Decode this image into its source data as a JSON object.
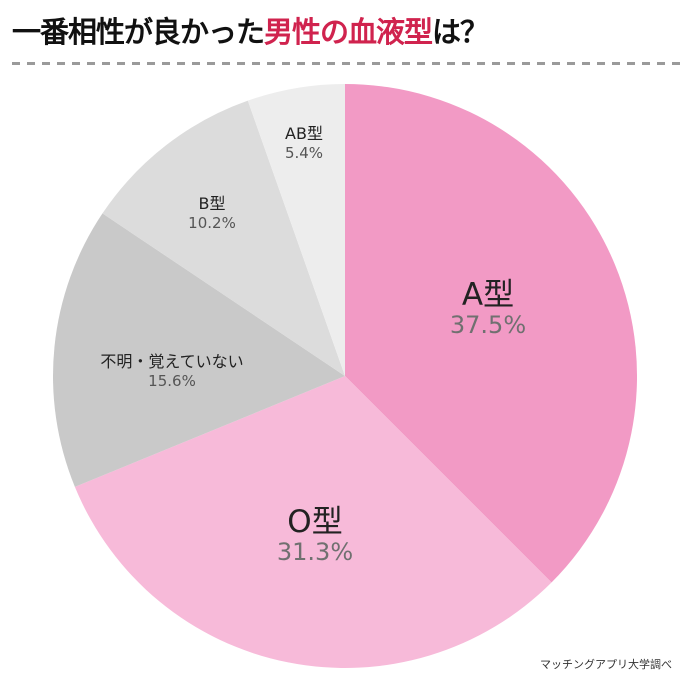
{
  "title": {
    "prefix": "一番相性が良かった",
    "highlight": "男性の血液型",
    "suffix": "は？",
    "highlight_color": "#D0234E"
  },
  "source": "マッチングアプリ大学調べ",
  "chart_data": {
    "type": "pie",
    "title": "一番相性が良かった男性の血液型は？",
    "start_angle": "12 o'clock, clockwise",
    "categories": [
      "A型",
      "O型",
      "不明・覚えていない",
      "B型",
      "AB型"
    ],
    "values": [
      37.5,
      31.3,
      15.6,
      10.2,
      5.4
    ],
    "unit": "%",
    "colors": [
      "#F29AC5",
      "#F7BAD9",
      "#C9C9C9",
      "#DCDCDC",
      "#EDEDED"
    ],
    "labels": [
      {
        "name": "A型",
        "pct": "37.5%"
      },
      {
        "name": "O型",
        "pct": "31.3%"
      },
      {
        "name": "不明・覚えていない",
        "pct": "15.6%"
      },
      {
        "name": "B型",
        "pct": "10.2%"
      },
      {
        "name": "AB型",
        "pct": "5.4%"
      }
    ],
    "annotation": "マッチングアプリ大学調べ",
    "legend": "none (labels inside slices)"
  }
}
